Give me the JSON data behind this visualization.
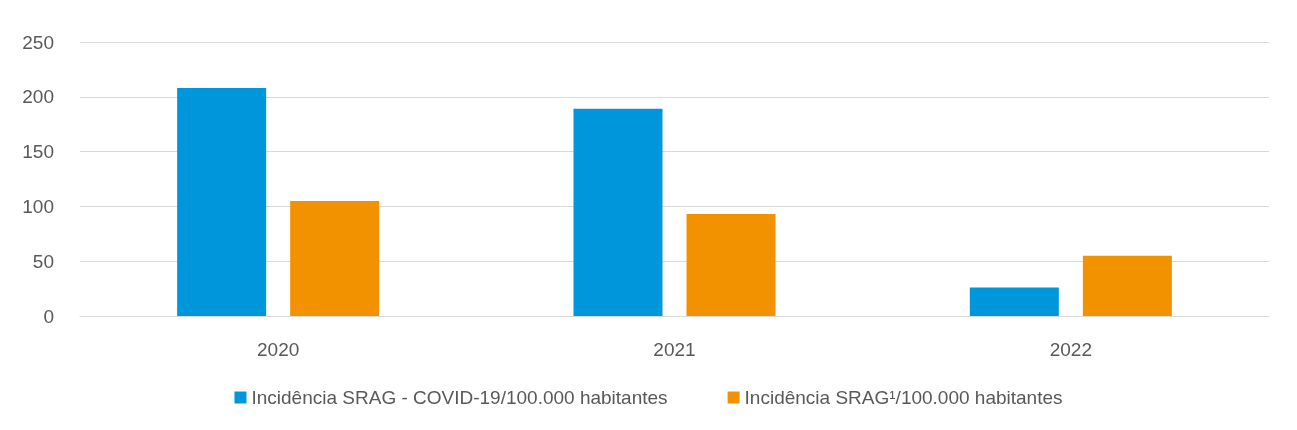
{
  "chart_data": {
    "type": "bar",
    "categories": [
      "2020",
      "2021",
      "2022"
    ],
    "series": [
      {
        "name": "Incidência SRAG - COVID-19/100.000 habitantes",
        "color": "#0096dc",
        "values": [
          208,
          189,
          26
        ]
      },
      {
        "name": "Incidência SRAG¹/100.000 habitantes",
        "color": "#f39200",
        "values": [
          105,
          93,
          55
        ]
      }
    ],
    "ylim": [
      0,
      250
    ],
    "yticks": [
      0,
      50,
      100,
      150,
      200,
      250
    ],
    "grid": "y",
    "legend": "bottom"
  }
}
